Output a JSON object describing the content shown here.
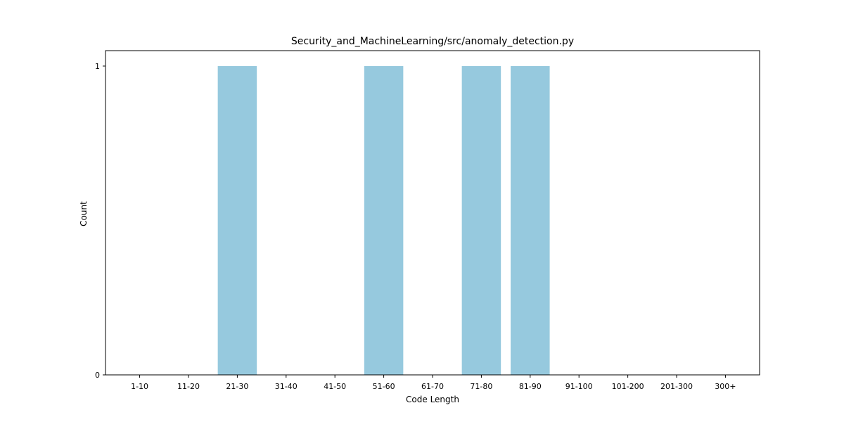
{
  "chart_data": {
    "type": "bar",
    "title": "Security_and_MachineLearning/src/anomaly_detection.py",
    "xlabel": "Code Length",
    "ylabel": "Count",
    "categories": [
      "1-10",
      "11-20",
      "21-30",
      "31-40",
      "41-50",
      "51-60",
      "61-70",
      "71-80",
      "81-90",
      "91-100",
      "101-200",
      "201-300",
      "300+"
    ],
    "values": [
      0,
      0,
      1,
      0,
      0,
      1,
      0,
      1,
      1,
      0,
      0,
      0,
      0
    ],
    "yticks": [
      0,
      1
    ],
    "ylim": [
      0,
      1.05
    ],
    "grid": false,
    "bar_color": "#96c9de"
  }
}
